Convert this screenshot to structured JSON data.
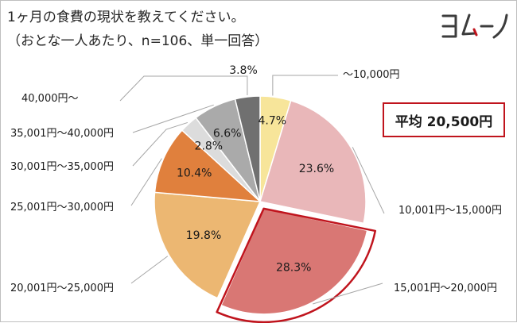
{
  "title": "1ヶ月の食費の現状を教えてください。",
  "subtitle": "（おとな一人あたり、n=106、単一回答）",
  "average_label": "平均 20,500円",
  "logo": {
    "text": "ヨムーノ",
    "name": "yomuno-logo"
  },
  "colors": {
    "highlight_border": "#c0141d",
    "slices": [
      "#f7e59a",
      "#e9b7b9",
      "#d97774",
      "#ecb772",
      "#e0803d",
      "#dcdcdc",
      "#aaaaaa",
      "#707070"
    ]
  },
  "chart_data": {
    "type": "pie",
    "categories": [
      "～10,000円",
      "10,001円～15,000円",
      "15,001円～20,000円",
      "20,001円～25,000円",
      "25,001円～30,000円",
      "30,001円～35,000円",
      "35,001円～40,000円",
      "40,000円～"
    ],
    "values": [
      4.7,
      23.6,
      28.3,
      19.8,
      10.4,
      2.8,
      6.6,
      3.8
    ],
    "value_labels": [
      "4.7%",
      "23.6%",
      "28.3%",
      "19.8%",
      "10.4%",
      "2.8%",
      "6.6%",
      "3.8%"
    ],
    "start": "12 o'clock",
    "direction": "clockwise",
    "highlighted_category": "15,001円～20,000円",
    "title": "1ヶ月の食費の現状を教えてください。",
    "subtitle": "（おとな一人あたり、n=106、単一回答）"
  }
}
